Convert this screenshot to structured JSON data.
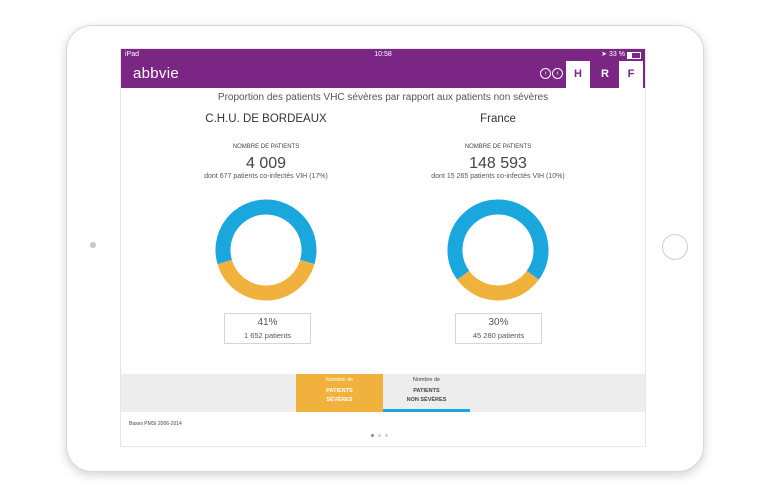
{
  "statusbar": {
    "device": "iPad",
    "time": "10:58",
    "battery": "33 %"
  },
  "header": {
    "logo": "abbvie",
    "tabs": [
      {
        "label": "H",
        "active": true
      },
      {
        "label": "R",
        "active": false
      },
      {
        "label": "F",
        "active": false
      }
    ]
  },
  "subtitle": "Proportion des patients VHC sévères par rapport aux patients non sévères",
  "panels": [
    {
      "title": "C.H.U. DE BORDEAUX",
      "label": "NOMBRE DE PATIENTS",
      "number": "4 009",
      "note": "dont 677 patients co-infectés VIH (17%)",
      "percent_text": "41%",
      "patients_text": "1 652 patients",
      "severe_fraction": 0.41
    },
    {
      "title": "France",
      "label": "NOMBRE DE PATIENTS",
      "number": "148 593",
      "note": "dont 15 265 patients co-infectés VIH (10%)",
      "percent_text": "30%",
      "patients_text": "45 280 patients",
      "severe_fraction": 0.3
    }
  ],
  "legend": {
    "severe": {
      "line1": "Nombre de",
      "line2": "PATIENTS",
      "line3": "SÉVÈRES"
    },
    "nonsevere": {
      "line1": "Nombre de",
      "line2": "PATIENTS",
      "line3": "NON SÉVÈRES"
    }
  },
  "footnote": "Bases PMSI 2006-2014",
  "colors": {
    "brand": "#7b2585",
    "severe": "#f0b23c",
    "nonsevere": "#1aa7dd"
  },
  "pagination": {
    "pages": 3,
    "current": 1
  }
}
